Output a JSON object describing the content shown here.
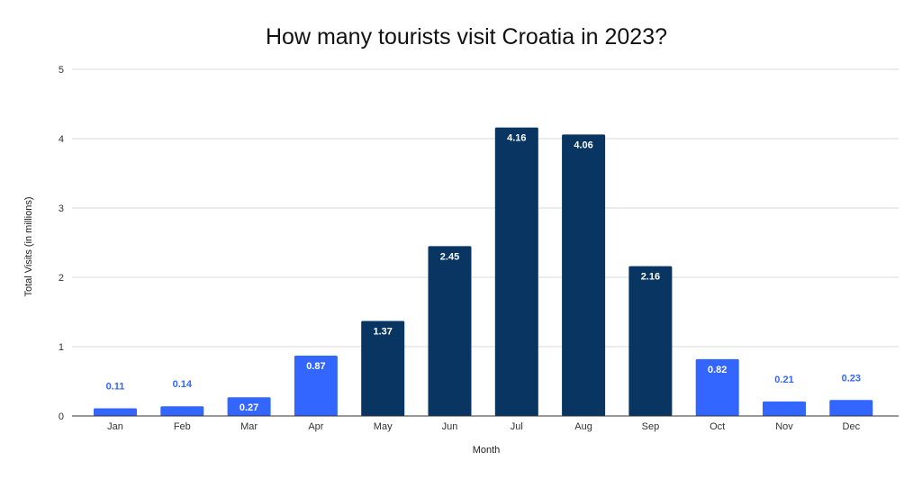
{
  "chart_data": {
    "type": "bar",
    "title": "How many tourists visit Croatia in 2023?",
    "xlabel": "Month",
    "ylabel": "Total Visits (in millions)",
    "categories": [
      "Jan",
      "Feb",
      "Mar",
      "Apr",
      "May",
      "Jun",
      "Jul",
      "Aug",
      "Sep",
      "Oct",
      "Nov",
      "Dec"
    ],
    "values": [
      0.11,
      0.14,
      0.27,
      0.87,
      1.37,
      2.45,
      4.16,
      4.06,
      2.16,
      0.82,
      0.21,
      0.23
    ],
    "data_labels": [
      "0.11",
      "0.14",
      "0.27",
      "0.87",
      "1.37",
      "2.45",
      "4.16",
      "4.06",
      "2.16",
      "0.82",
      "0.21",
      "0.23"
    ],
    "bar_colors": [
      "#3366ff",
      "#3366ff",
      "#3366ff",
      "#3366ff",
      "#083562",
      "#083562",
      "#083562",
      "#083562",
      "#083562",
      "#3366ff",
      "#3366ff",
      "#3366ff"
    ],
    "label_inside_color": "#ffffff",
    "label_outside_color": "#3366ff",
    "ylim": [
      0,
      5
    ],
    "yticks": [
      "0",
      "1",
      "2",
      "3",
      "4",
      "5"
    ],
    "grid": true,
    "legend": "none"
  }
}
